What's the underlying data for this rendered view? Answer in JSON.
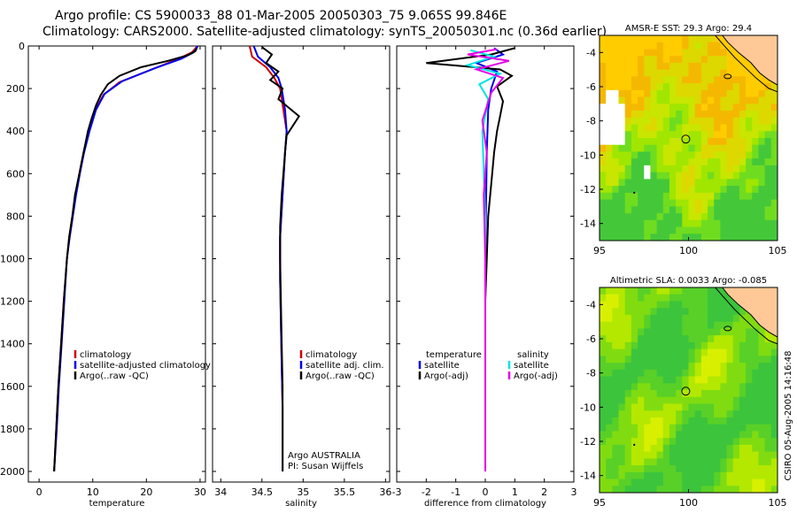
{
  "header": {
    "line1": "Argo profile: CS 5900033_88 01-Mar-2005 20050303_75 9.065S 99.846E",
    "line2": "Climatology: CARS2000. Satellite-adjusted climatology: synTS_20050301.nc (0.36d earlier)"
  },
  "side_stamp": "CSIRO 05-Aug-2005 14:16:48",
  "chart_data": [
    {
      "type": "line",
      "id": "temperature",
      "xlabel": "temperature",
      "xlim": [
        -2,
        31
      ],
      "ylim": [
        2050,
        0
      ],
      "xticks": [
        0,
        10,
        20,
        30
      ],
      "yticks": [
        0,
        200,
        400,
        600,
        800,
        1000,
        1200,
        1400,
        1600,
        1800,
        2000
      ],
      "legend": [
        "climatology",
        "satellite-adjusted climatology",
        "Argo(..raw -QC)"
      ],
      "colors": [
        "#cc0000",
        "#0000ee",
        "#000000"
      ],
      "series": [
        {
          "name": "climatology",
          "points": [
            [
              29.5,
              0
            ],
            [
              28.5,
              30
            ],
            [
              26,
              60
            ],
            [
              21,
              110
            ],
            [
              15,
              170
            ],
            [
              12,
              230
            ],
            [
              10.5,
              300
            ],
            [
              9.3,
              400
            ],
            [
              8.3,
              500
            ],
            [
              7.5,
              600
            ],
            [
              6.8,
              700
            ],
            [
              6.2,
              800
            ],
            [
              5.6,
              900
            ],
            [
              5.2,
              1000
            ],
            [
              4.6,
              1200
            ],
            [
              4.1,
              1400
            ],
            [
              3.6,
              1600
            ],
            [
              3.2,
              1800
            ],
            [
              2.8,
              2000
            ]
          ]
        },
        {
          "name": "satellite-adjusted climatology",
          "points": [
            [
              29.6,
              0
            ],
            [
              28.8,
              30
            ],
            [
              26.5,
              60
            ],
            [
              21.5,
              105
            ],
            [
              15.5,
              165
            ],
            [
              12.2,
              225
            ],
            [
              10.6,
              300
            ],
            [
              9.4,
              400
            ],
            [
              8.4,
              500
            ],
            [
              7.6,
              600
            ],
            [
              6.9,
              700
            ],
            [
              6.3,
              800
            ],
            [
              5.7,
              900
            ],
            [
              5.2,
              1000
            ],
            [
              4.7,
              1200
            ],
            [
              4.2,
              1400
            ],
            [
              3.7,
              1600
            ],
            [
              3.3,
              1800
            ],
            [
              2.8,
              2000
            ]
          ]
        },
        {
          "name": "Argo(..raw -QC)",
          "points": [
            [
              29.4,
              10
            ],
            [
              29.1,
              25
            ],
            [
              27.5,
              45
            ],
            [
              24,
              70
            ],
            [
              19,
              100
            ],
            [
              15,
              140
            ],
            [
              12.8,
              180
            ],
            [
              11.5,
              230
            ],
            [
              10.6,
              280
            ],
            [
              9.8,
              340
            ],
            [
              9.1,
              400
            ],
            [
              8.3,
              500
            ],
            [
              7.5,
              600
            ],
            [
              6.7,
              700
            ],
            [
              6.2,
              800
            ],
            [
              5.6,
              900
            ],
            [
              5.2,
              1000
            ],
            [
              4.6,
              1200
            ],
            [
              4.1,
              1400
            ],
            [
              3.6,
              1600
            ],
            [
              3.2,
              1800
            ],
            [
              2.8,
              2000
            ]
          ]
        }
      ]
    },
    {
      "type": "line",
      "id": "salinity",
      "xlabel": "salinity",
      "xlim": [
        33.9,
        36.05
      ],
      "ylim": [
        2050,
        0
      ],
      "xticks": [
        34,
        34.5,
        35,
        35.5,
        36
      ],
      "legend": [
        "climatology",
        "satellite adj. clim.",
        "Argo(..raw -QC)"
      ],
      "colors": [
        "#cc0000",
        "#0000ee",
        "#000000"
      ],
      "annotation": [
        "Argo AUSTRALIA",
        "PI: Susan Wijffels"
      ],
      "series": [
        {
          "name": "climatology",
          "points": [
            [
              34.35,
              0
            ],
            [
              34.38,
              50
            ],
            [
              34.55,
              100
            ],
            [
              34.65,
              150
            ],
            [
              34.72,
              200
            ],
            [
              34.76,
              300
            ],
            [
              34.8,
              400
            ],
            [
              34.78,
              500
            ],
            [
              34.75,
              700
            ],
            [
              34.72,
              900
            ],
            [
              34.72,
              1100
            ],
            [
              34.73,
              1300
            ],
            [
              34.74,
              1500
            ],
            [
              34.75,
              1700
            ],
            [
              34.75,
              1900
            ],
            [
              34.75,
              2000
            ]
          ]
        },
        {
          "name": "satellite adj. clim.",
          "points": [
            [
              34.4,
              0
            ],
            [
              34.45,
              50
            ],
            [
              34.6,
              100
            ],
            [
              34.7,
              150
            ],
            [
              34.74,
              200
            ],
            [
              34.78,
              300
            ],
            [
              34.8,
              400
            ],
            [
              34.78,
              500
            ],
            [
              34.75,
              700
            ],
            [
              34.72,
              900
            ],
            [
              34.72,
              1100
            ],
            [
              34.73,
              1300
            ],
            [
              34.74,
              1500
            ],
            [
              34.75,
              1700
            ],
            [
              34.75,
              1900
            ],
            [
              34.75,
              2000
            ]
          ]
        },
        {
          "name": "Argo(..raw -QC)",
          "points": [
            [
              34.5,
              5
            ],
            [
              34.62,
              40
            ],
            [
              34.55,
              80
            ],
            [
              34.7,
              120
            ],
            [
              34.6,
              160
            ],
            [
              34.75,
              200
            ],
            [
              34.7,
              250
            ],
            [
              34.95,
              330
            ],
            [
              34.8,
              420
            ],
            [
              34.78,
              500
            ],
            [
              34.76,
              600
            ],
            [
              34.74,
              700
            ],
            [
              34.72,
              850
            ],
            [
              34.72,
              1000
            ],
            [
              34.73,
              1200
            ],
            [
              34.74,
              1400
            ],
            [
              34.75,
              1600
            ],
            [
              34.75,
              1800
            ],
            [
              34.75,
              2000
            ]
          ]
        }
      ]
    },
    {
      "type": "line",
      "id": "difference",
      "xlabel": "difference from climatology",
      "xlim": [
        -3,
        3
      ],
      "ylim": [
        2050,
        0
      ],
      "xticks": [
        -3,
        -2,
        -1,
        0,
        1,
        2,
        3
      ],
      "legend_left_title": "temperature",
      "legend_right_title": "salinity",
      "legend_left": [
        "satellite",
        "Argo(-adj)"
      ],
      "legend_right": [
        "satellite",
        "Argo(-adj)"
      ],
      "legend_left_colors": [
        "#0000ee",
        "#000000"
      ],
      "legend_right_colors": [
        "#00e5e5",
        "#e600e6"
      ],
      "series": [
        {
          "name": "temperature satellite",
          "color": "#0000ee",
          "points": [
            [
              0.3,
              10
            ],
            [
              0.6,
              40
            ],
            [
              -0.3,
              80
            ],
            [
              0.4,
              120
            ],
            [
              0.2,
              200
            ],
            [
              0.1,
              300
            ],
            [
              0.05,
              500
            ],
            [
              0,
              1000
            ],
            [
              0,
              2000
            ]
          ]
        },
        {
          "name": "temperature Argo(-adj)",
          "color": "#000000",
          "points": [
            [
              1,
              10
            ],
            [
              0.2,
              40
            ],
            [
              -2,
              80
            ],
            [
              0.5,
              110
            ],
            [
              0.9,
              140
            ],
            [
              0.4,
              190
            ],
            [
              0.6,
              260
            ],
            [
              0.5,
              330
            ],
            [
              0.4,
              400
            ],
            [
              0.3,
              500
            ],
            [
              0.2,
              650
            ],
            [
              0.1,
              800
            ],
            [
              0.05,
              1000
            ],
            [
              0,
              1200
            ],
            [
              0,
              2000
            ]
          ]
        },
        {
          "name": "salinity satellite",
          "color": "#00e5e5",
          "points": [
            [
              -0.5,
              20
            ],
            [
              0.3,
              50
            ],
            [
              -0.6,
              90
            ],
            [
              0.5,
              130
            ],
            [
              -0.2,
              180
            ],
            [
              0.1,
              250
            ],
            [
              -0.1,
              400
            ],
            [
              0,
              800
            ],
            [
              0,
              2000
            ]
          ]
        },
        {
          "name": "salinity Argo(-adj)",
          "color": "#e600e6",
          "points": [
            [
              0.4,
              15
            ],
            [
              -0.6,
              40
            ],
            [
              0.8,
              70
            ],
            [
              -0.3,
              110
            ],
            [
              0.6,
              150
            ],
            [
              0.2,
              220
            ],
            [
              -0.1,
              350
            ],
            [
              0.05,
              500
            ],
            [
              -0.05,
              700
            ],
            [
              0,
              1000
            ],
            [
              0,
              2000
            ]
          ]
        }
      ]
    },
    {
      "type": "heatmap",
      "id": "sst",
      "title": "AMSR-E SST: 29.3 Argo: 29.4",
      "xlim": [
        95,
        105
      ],
      "ylim": [
        -15,
        -3
      ],
      "xticks": [
        95,
        100,
        105
      ],
      "yticks": [
        -4,
        -6,
        -8,
        -10,
        -12,
        -14
      ],
      "marker": [
        99.846,
        -9.065
      ]
    },
    {
      "type": "heatmap",
      "id": "sla",
      "title": "Altimetric SLA: 0.0033 Argo: -0.085",
      "xlim": [
        95,
        105
      ],
      "ylim": [
        -15,
        -3
      ],
      "xticks": [
        95,
        100,
        105
      ],
      "yticks": [
        -4,
        -6,
        -8,
        -10,
        -12,
        -14
      ],
      "marker": [
        99.846,
        -9.065
      ]
    }
  ]
}
